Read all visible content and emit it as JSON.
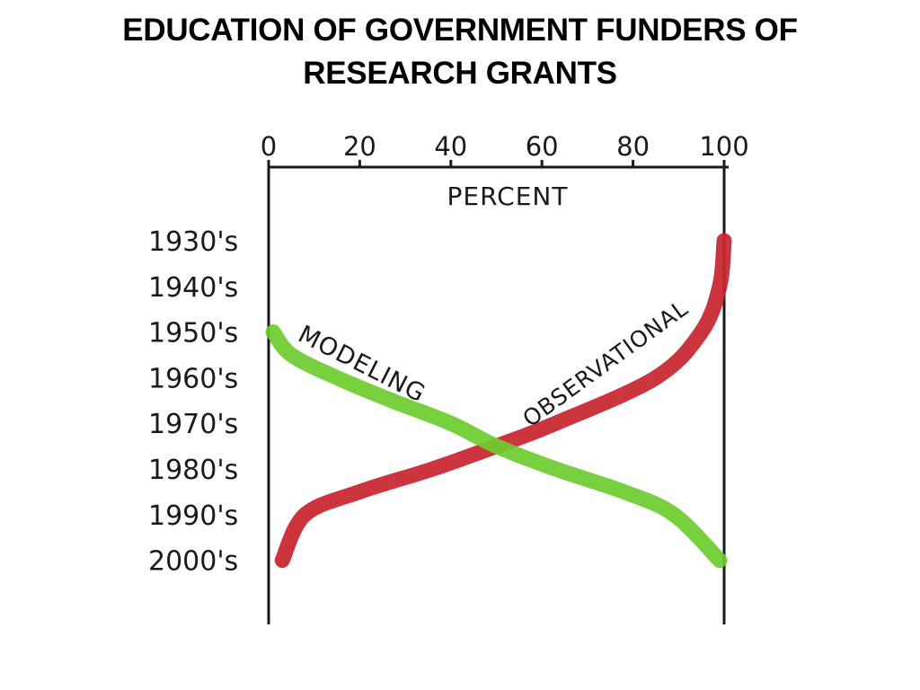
{
  "slide": {
    "title_line1": "EDUCATION OF GOVERNMENT FUNDERS OF",
    "title_line2": "RESEARCH GRANTS"
  },
  "chart_data": {
    "type": "line",
    "title": "EDUCATION OF GOVERNMENT FUNDERS OF RESEARCH GRANTS",
    "xlabel": "PERCENT",
    "ylabel": "",
    "xlim": [
      0,
      100
    ],
    "x_ticks": [
      "0",
      "20",
      "40",
      "60",
      "80",
      "100"
    ],
    "x_tick_values": [
      0,
      20,
      40,
      60,
      80,
      100
    ],
    "categories": [
      "1930's",
      "1940's",
      "1950's",
      "1960's",
      "1970's",
      "1980's",
      "1990's",
      "2000's"
    ],
    "axis_position": "top",
    "grid": false,
    "series": [
      {
        "name": "MODELING",
        "color": "#6dcc2e",
        "points": [
          {
            "decade": 1950,
            "percent": 1
          },
          {
            "decade": 1955,
            "percent": 5
          },
          {
            "decade": 1960,
            "percent": 15
          },
          {
            "decade": 1965,
            "percent": 27
          },
          {
            "decade": 1970,
            "percent": 40
          },
          {
            "decade": 1975,
            "percent": 50
          },
          {
            "decade": 1980,
            "percent": 63
          },
          {
            "decade": 1985,
            "percent": 78
          },
          {
            "decade": 1990,
            "percent": 89
          },
          {
            "decade": 2000,
            "percent": 99
          }
        ]
      },
      {
        "name": "OBSERVATIONAL",
        "color": "#c8242c",
        "points": [
          {
            "decade": 1930,
            "percent": 100
          },
          {
            "decade": 1940,
            "percent": 99
          },
          {
            "decade": 1950,
            "percent": 95
          },
          {
            "decade": 1960,
            "percent": 85
          },
          {
            "decade": 1970,
            "percent": 63
          },
          {
            "decade": 1975,
            "percent": 50
          },
          {
            "decade": 1980,
            "percent": 36
          },
          {
            "decade": 1985,
            "percent": 20
          },
          {
            "decade": 1990,
            "percent": 8
          },
          {
            "decade": 2000,
            "percent": 3
          }
        ]
      }
    ]
  }
}
